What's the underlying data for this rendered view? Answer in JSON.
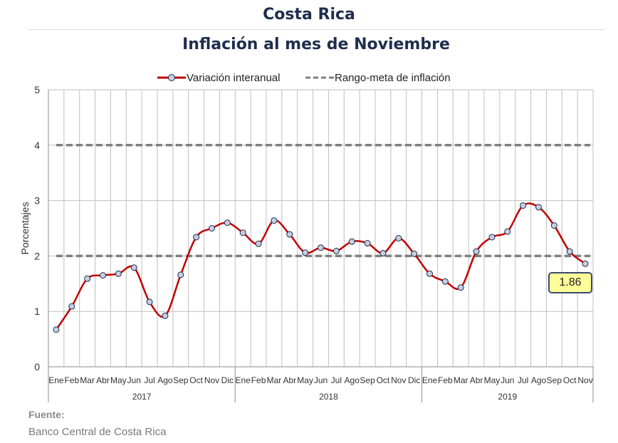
{
  "title": "Costa Rica",
  "subtitle": "Inflación al mes de Noviembre",
  "source": {
    "label": "Fuente:",
    "text": "Banco Central de Costa Rica"
  },
  "callout": "1.86",
  "colors": {
    "series": "#c00000",
    "marker_fill": "#c5cfe0",
    "marker_stroke": "#1f2d4d",
    "target": "#7f7f7f",
    "grid": "#bfbfbf",
    "title": "#1f2d4d"
  },
  "chart_data": {
    "type": "line",
    "ylabel": "Porcentajes",
    "ylim": [
      0,
      5
    ],
    "yticks": [
      "0",
      "1",
      "2",
      "3",
      "4",
      "5"
    ],
    "grid": true,
    "legend_position": "top",
    "months": [
      "Ene",
      "Feb",
      "Mar",
      "Abr",
      "May",
      "Jun",
      "Jul",
      "Ago",
      "Sep",
      "Oct",
      "Nov",
      "Dic",
      "Ene",
      "Feb",
      "Mar",
      "Abr",
      "May",
      "Jun",
      "Jul",
      "Ago",
      "Sep",
      "Oct",
      "Nov",
      "Dic",
      "Ene",
      "Feb",
      "Mar",
      "Abr",
      "May",
      "Jun",
      "Jul",
      "Ago",
      "Sep",
      "Oct",
      "Nov"
    ],
    "years": [
      {
        "label": "2017",
        "months": 12
      },
      {
        "label": "2018",
        "months": 12
      },
      {
        "label": "2019",
        "months": 11
      }
    ],
    "series": [
      {
        "name": "Variación interanual",
        "values": [
          0.67,
          1.09,
          1.59,
          1.65,
          1.68,
          1.79,
          1.17,
          0.92,
          1.66,
          2.34,
          2.5,
          2.6,
          2.42,
          2.22,
          2.64,
          2.39,
          2.06,
          2.15,
          2.09,
          2.26,
          2.23,
          2.05,
          2.32,
          2.04,
          1.68,
          1.54,
          1.43,
          2.08,
          2.34,
          2.44,
          2.91,
          2.88,
          2.55,
          2.08,
          1.86
        ]
      },
      {
        "name": "Rango-meta de inflación",
        "lower": 2,
        "upper": 4
      }
    ]
  }
}
